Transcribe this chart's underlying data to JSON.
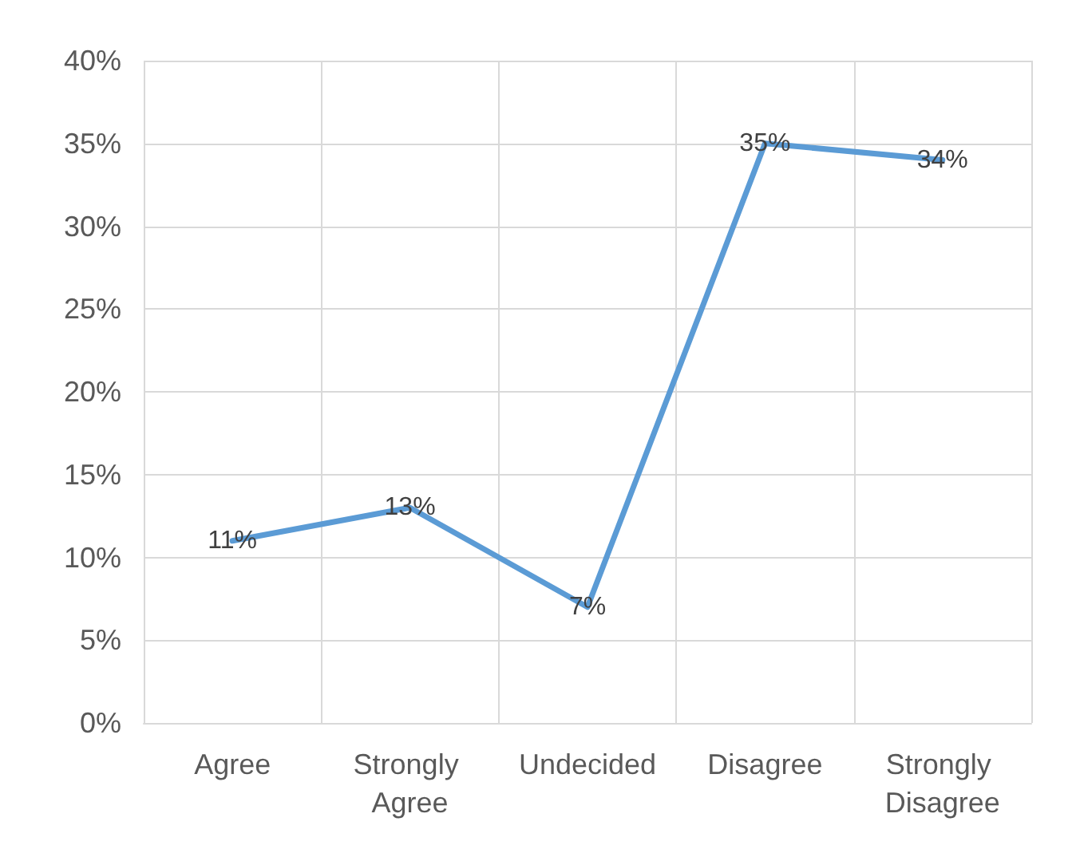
{
  "chart_data": {
    "type": "line",
    "categories": [
      "Agree",
      "Strongly Agree",
      "Undecided",
      "Disagree",
      "Strongly Disagree"
    ],
    "series": [
      {
        "color": "#5b9bd5",
        "values": [
          11,
          13,
          7,
          35,
          34
        ],
        "value_labels": [
          "11%",
          "13%",
          "7%",
          "35%",
          "34%"
        ]
      }
    ],
    "ylim": [
      0,
      40
    ],
    "yticks": [
      {
        "value": 0,
        "label": "0%"
      },
      {
        "value": 5,
        "label": "5%"
      },
      {
        "value": 10,
        "label": "10%"
      },
      {
        "value": 15,
        "label": "15%"
      },
      {
        "value": 20,
        "label": "20%"
      },
      {
        "value": 25,
        "label": "25%"
      },
      {
        "value": 30,
        "label": "30%"
      },
      {
        "value": 35,
        "label": "35%"
      },
      {
        "value": 40,
        "label": "40%"
      }
    ],
    "grid": true,
    "marker": "none",
    "line_style": "solid"
  }
}
